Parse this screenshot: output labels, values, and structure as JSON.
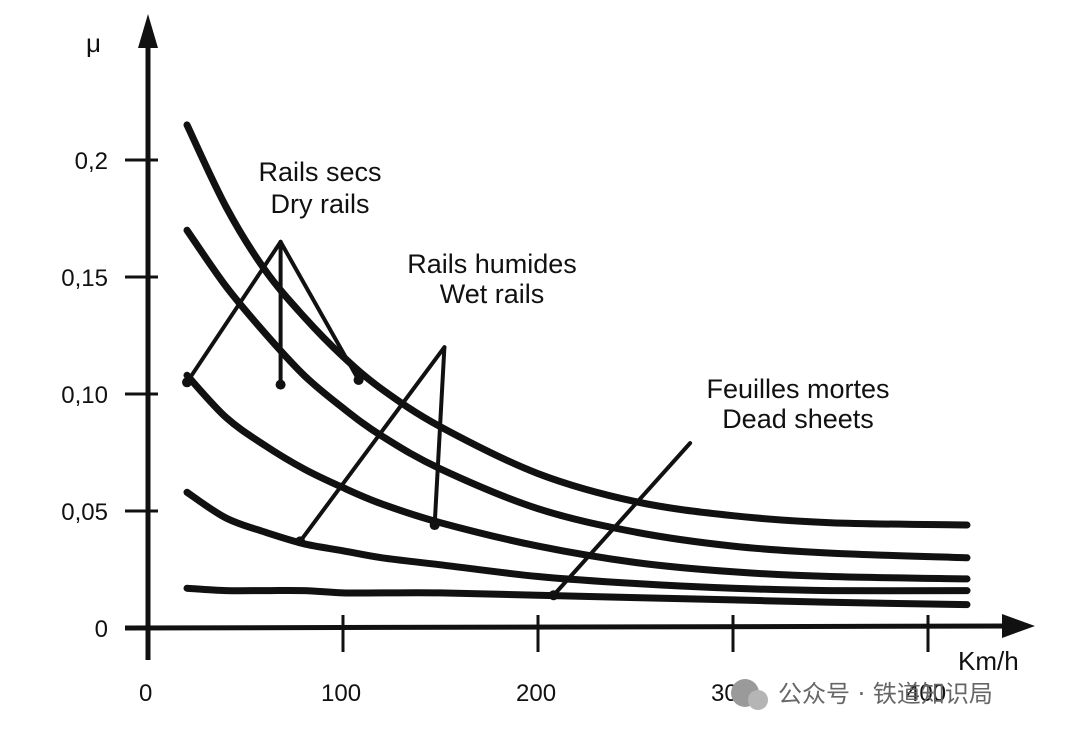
{
  "chart_data": {
    "type": "line",
    "title": "",
    "xlabel": "Km/h",
    "ylabel": "μ",
    "xlim": [
      0,
      420
    ],
    "ylim": [
      0,
      0.25
    ],
    "x_ticks": [
      0,
      100,
      200,
      300,
      400
    ],
    "x_tick_labels": [
      "0",
      "100",
      "200",
      "300",
      "400"
    ],
    "y_ticks": [
      0,
      0.05,
      0.1,
      0.15,
      0.2
    ],
    "y_tick_labels": [
      "0",
      "0,05",
      "0,10",
      "0,15",
      "0,2"
    ],
    "grid": false,
    "x": [
      20,
      40,
      60,
      80,
      100,
      120,
      150,
      200,
      250,
      300,
      350,
      420
    ],
    "series": [
      {
        "values": [
          0.215,
          0.18,
          0.153,
          0.133,
          0.116,
          0.102,
          0.086,
          0.066,
          0.054,
          0.048,
          0.045,
          0.044
        ]
      },
      {
        "values": [
          0.17,
          0.146,
          0.126,
          0.108,
          0.094,
          0.082,
          0.068,
          0.051,
          0.041,
          0.035,
          0.032,
          0.03
        ]
      },
      {
        "values": [
          0.108,
          0.09,
          0.078,
          0.068,
          0.06,
          0.053,
          0.045,
          0.035,
          0.028,
          0.024,
          0.022,
          0.021
        ]
      },
      {
        "values": [
          0.058,
          0.047,
          0.041,
          0.036,
          0.033,
          0.03,
          0.027,
          0.022,
          0.019,
          0.017,
          0.016,
          0.016
        ]
      },
      {
        "values": [
          0.017,
          0.016,
          0.016,
          0.016,
          0.015,
          0.015,
          0.015,
          0.014,
          0.013,
          0.012,
          0.011,
          0.01
        ]
      }
    ],
    "annotations": [
      {
        "lines": [
          "Rails secs",
          "Dry rails"
        ],
        "apex": [
          68,
          0.165
        ],
        "targets": [
          [
            20,
            0.105
          ],
          [
            68,
            0.104
          ],
          [
            108,
            0.106
          ]
        ]
      },
      {
        "lines": [
          "Rails humides",
          "Wet rails"
        ],
        "apex": [
          152,
          0.12
        ],
        "targets": [
          [
            78,
            0.037
          ],
          [
            147,
            0.044
          ]
        ]
      },
      {
        "lines": [
          "Feuilles mortes",
          "Dead sheets"
        ],
        "apex": [
          278,
          0.079
        ],
        "targets": [
          [
            208,
            0.014
          ]
        ]
      }
    ]
  },
  "watermark": {
    "text": "公众号 · 铁道知识局"
  }
}
